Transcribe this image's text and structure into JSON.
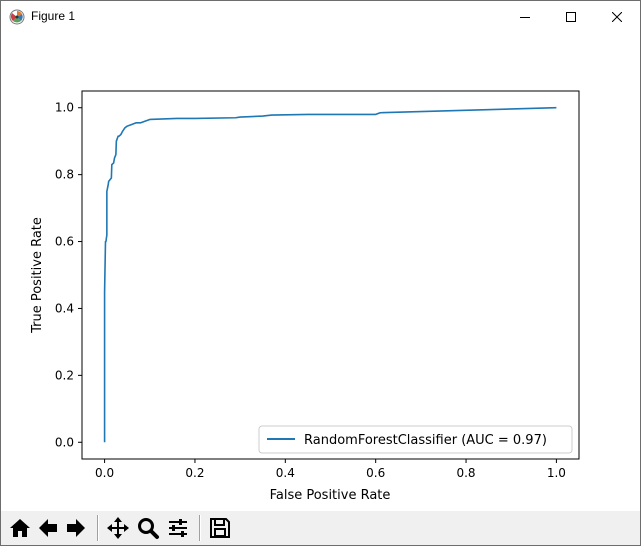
{
  "window": {
    "title": "Figure 1",
    "controls": {
      "minimize_icon": "minimize-icon",
      "maximize_icon": "maximize-icon",
      "close_icon": "close-icon"
    }
  },
  "toolbar": {
    "buttons": [
      {
        "name": "home",
        "icon": "home-icon"
      },
      {
        "name": "back",
        "icon": "arrow-left-icon"
      },
      {
        "name": "forward",
        "icon": "arrow-right-icon"
      },
      {
        "name": "pan",
        "icon": "move-icon"
      },
      {
        "name": "zoom",
        "icon": "magnifier-icon"
      },
      {
        "name": "configure-subplots",
        "icon": "sliders-icon"
      },
      {
        "name": "save",
        "icon": "floppy-disk-icon"
      }
    ]
  },
  "chart_data": {
    "type": "line",
    "title": "",
    "xlabel": "False Positive Rate",
    "ylabel": "True Positive Rate",
    "xlim": [
      -0.05,
      1.05
    ],
    "ylim": [
      -0.05,
      1.05
    ],
    "xticks": [
      "0.0",
      "0.2",
      "0.4",
      "0.6",
      "0.8",
      "1.0"
    ],
    "yticks": [
      "0.0",
      "0.2",
      "0.4",
      "0.6",
      "0.8",
      "1.0"
    ],
    "grid": false,
    "legend_position": "lower right",
    "series": [
      {
        "name": "RandomForestClassifier (AUC = 0.97)",
        "color": "#1f77b4",
        "x": [
          0.0,
          0.0,
          0.002,
          0.003,
          0.005,
          0.005,
          0.008,
          0.009,
          0.015,
          0.016,
          0.02,
          0.022,
          0.025,
          0.026,
          0.03,
          0.032,
          0.036,
          0.04,
          0.045,
          0.05,
          0.06,
          0.07,
          0.08,
          0.09,
          0.1,
          0.16,
          0.2,
          0.29,
          0.3,
          0.35,
          0.37,
          0.45,
          0.6,
          0.61,
          1.0
        ],
        "y": [
          0.0,
          0.45,
          0.6,
          0.6,
          0.62,
          0.75,
          0.77,
          0.78,
          0.79,
          0.83,
          0.835,
          0.85,
          0.86,
          0.9,
          0.915,
          0.915,
          0.92,
          0.93,
          0.94,
          0.945,
          0.95,
          0.955,
          0.955,
          0.96,
          0.965,
          0.968,
          0.968,
          0.97,
          0.972,
          0.975,
          0.978,
          0.98,
          0.98,
          0.985,
          1.0
        ]
      }
    ]
  }
}
